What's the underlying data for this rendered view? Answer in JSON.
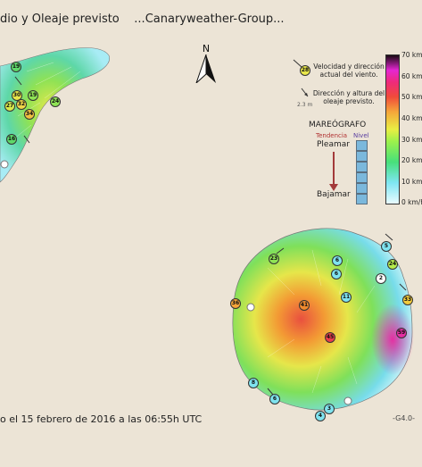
{
  "header": {
    "title": "dio y Oleaje previsto    ...Canaryweather-Group..."
  },
  "footer": {
    "date_text": "o el 15 febrero de 2016 a las 06:55h UTC",
    "code": "-G4.0-"
  },
  "north": {
    "label": "N"
  },
  "legend": {
    "wind_marker_value": "28",
    "wind_text": "Velocidad y dirección actual del viento.",
    "wave_height": "2.3 m",
    "wave_text": "Dirección y altura del oleaje previsto.",
    "tide": {
      "title": "MAREÓGRAFO",
      "trend_label": "Tendencia",
      "level_label": "Nivel",
      "high": "Pleamar",
      "low": "Bajamar",
      "levels_count": 6
    },
    "scale_labels": [
      "70 km/h",
      "60 km/h",
      "50 km/h",
      "40 km/h",
      "30 km/h",
      "20 km/h",
      "10 km/h",
      "0 km/h"
    ],
    "colors": {
      "trend_arrow": "#a33a3a",
      "trend_label": "#b03030",
      "level_label": "#5a3ea0"
    }
  },
  "stations": [
    {
      "value": "19",
      "color": "#5fd86a"
    },
    {
      "value": "30",
      "color": "#e8e64a"
    },
    {
      "value": "19",
      "color": "#8fe255"
    },
    {
      "value": "27",
      "color": "#d9ea4c"
    },
    {
      "value": "32",
      "color": "#efd448"
    },
    {
      "value": "34",
      "color": "#f0c040"
    },
    {
      "value": "24",
      "color": "#8fe255"
    },
    {
      "value": "16",
      "color": "#5fd86a"
    },
    {
      "value": "23",
      "color": "#8fe255"
    },
    {
      "value": "6",
      "color": "#7fe3ef"
    },
    {
      "value": "6",
      "color": "#7fe3ef"
    },
    {
      "value": "11",
      "color": "#7fe3ef"
    },
    {
      "value": "2",
      "color": "#ffffff"
    },
    {
      "value": "5",
      "color": "#7fe3ef"
    },
    {
      "value": "24",
      "color": "#b5ec4c"
    },
    {
      "value": "33",
      "color": "#f2cc3c"
    },
    {
      "value": "36",
      "color": "#f5a53a"
    },
    {
      "value": "41",
      "color": "#f08a2e"
    },
    {
      "value": "45",
      "color": "#e83d4c"
    },
    {
      "value": "59",
      "color": "#e52fa3"
    },
    {
      "value": "8",
      "color": "#7fe3ef"
    },
    {
      "value": "6",
      "color": "#7fe3ef"
    },
    {
      "value": "3",
      "color": "#7fe3ef"
    },
    {
      "value": "4",
      "color": "#7fe3ef"
    }
  ]
}
